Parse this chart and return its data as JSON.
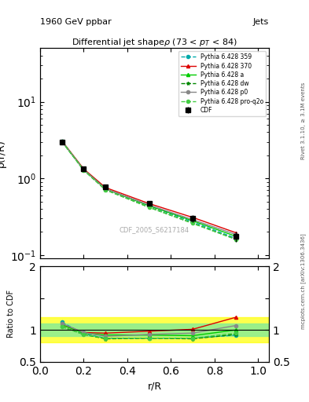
{
  "title_top": "1960 GeV ppbar",
  "title_top_right": "Jets",
  "title_main": "Differential jet shapeρ (73 < p_{T} < 84)",
  "xlabel": "r/R",
  "ylabel_top": "ρ(r/R)",
  "ylabel_bottom": "Ratio to CDF",
  "watermark": "CDF_2005_S6217184",
  "right_label_top": "Rivet 3.1.10, ≥ 3.1M events",
  "right_label_bottom": "mcplots.cern.ch [arXiv:1306.3436]",
  "x_data": [
    0.1,
    0.2,
    0.3,
    0.5,
    0.7,
    0.9
  ],
  "cdf_y": [
    3.0,
    1.35,
    0.77,
    0.47,
    0.3,
    0.175
  ],
  "cdf_yerr_rel": [
    0.05,
    0.05,
    0.05,
    0.05,
    0.1,
    0.15
  ],
  "py359_y": [
    3.05,
    1.3,
    0.73,
    0.44,
    0.27,
    0.165
  ],
  "py370_y": [
    3.08,
    1.33,
    0.76,
    0.47,
    0.31,
    0.195
  ],
  "pya_y": [
    3.05,
    1.3,
    0.73,
    0.44,
    0.28,
    0.175
  ],
  "pydw_y": [
    3.02,
    1.28,
    0.71,
    0.42,
    0.26,
    0.16
  ],
  "pyp0_y": [
    3.05,
    1.3,
    0.73,
    0.45,
    0.29,
    0.185
  ],
  "pyproq2o_y": [
    3.02,
    1.28,
    0.71,
    0.42,
    0.26,
    0.16
  ],
  "ratio_py359": [
    1.12,
    0.94,
    0.87,
    0.87,
    0.87,
    0.92
  ],
  "ratio_py370": [
    1.08,
    0.96,
    0.95,
    0.98,
    1.01,
    1.2
  ],
  "ratio_pya": [
    1.08,
    0.95,
    0.92,
    0.92,
    0.91,
    1.0
  ],
  "ratio_pydw": [
    1.05,
    0.93,
    0.86,
    0.87,
    0.86,
    0.93
  ],
  "ratio_pyp0": [
    1.1,
    0.96,
    0.9,
    0.93,
    0.95,
    1.07
  ],
  "ratio_pyproq2o": [
    1.05,
    0.93,
    0.87,
    0.87,
    0.87,
    0.95
  ],
  "green_band_inner": [
    0.05,
    0.1
  ],
  "yellow_band_outer": [
    0.1,
    0.2
  ],
  "colors": {
    "cdf": "#000000",
    "py359": "#00aaaa",
    "py370": "#dd0000",
    "pya": "#00cc00",
    "pydw": "#008800",
    "pyp0": "#888888",
    "pyproq2o": "#44cc44"
  },
  "legend_entries": [
    "CDF",
    "Pythia 6.428 359",
    "Pythia 6.428 370",
    "Pythia 6.428 a",
    "Pythia 6.428 dw",
    "Pythia 6.428 p0",
    "Pythia 6.428 pro-q2o"
  ]
}
